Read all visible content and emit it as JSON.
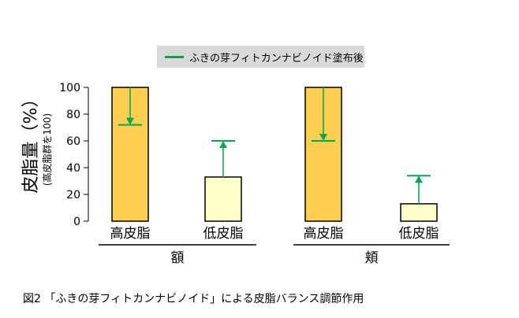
{
  "chart_data": {
    "type": "bar",
    "title": "",
    "ylabel_main": "皮脂量（%）",
    "ylabel_sub": "(高皮脂群を100)",
    "ylim": [
      0,
      100
    ],
    "yticks": [
      0,
      20,
      40,
      60,
      80,
      100
    ],
    "groups": [
      "額",
      "頬"
    ],
    "categories": [
      "高皮脂",
      "低皮脂",
      "高皮脂",
      "低皮脂"
    ],
    "bar_groups": [
      "額",
      "額",
      "頬",
      "頬"
    ],
    "values": [
      100,
      33,
      100,
      13
    ],
    "after_values": [
      72,
      60,
      60,
      34
    ],
    "bar_colors": [
      "#ffd050",
      "#ffffcc",
      "#ffd050",
      "#ffffcc"
    ],
    "arrow_color": "#00a650",
    "legend": "ふきの芽フィトカンナビノイド塗布後",
    "grid": false,
    "legend_position": "top"
  },
  "caption": "図2 「ふきの芽フィトカンナビノイド」による皮脂バランス調節作用"
}
